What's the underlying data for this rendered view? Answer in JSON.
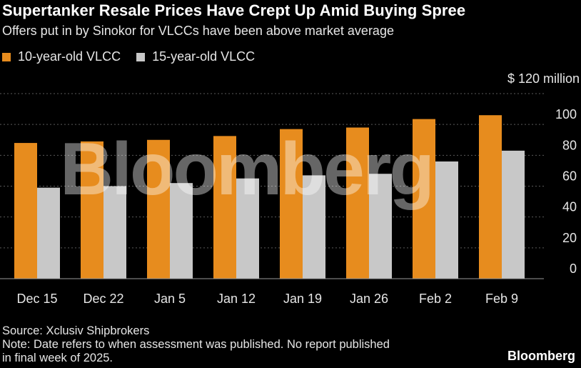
{
  "title": "Supertanker Resale Prices Have Crept Up Amid Buying Spree",
  "subtitle": "Offers put in by Sinokor for VLCCs have been above market average",
  "legend": [
    {
      "label": "10-year-old VLCC",
      "color": "#e78c1e"
    },
    {
      "label": "15-year-old VLCC",
      "color": "#c8c8c8"
    }
  ],
  "unit_label": "$ 120 million",
  "watermark": "Bloomberg",
  "footer": {
    "source": "Source: Xclusiv Shipbrokers",
    "note_line1": "Note: Date refers to when assessment was published. No report published",
    "note_line2": "in final week of 2025."
  },
  "brand": "Bloomberg",
  "chart_data": {
    "type": "bar",
    "categories": [
      "Dec 15",
      "Dec 22",
      "Jan 5",
      "Jan 12",
      "Jan 19",
      "Jan 26",
      "Feb 2",
      "Feb 9"
    ],
    "series": [
      {
        "name": "10-year-old VLCC",
        "values": [
          88,
          89,
          90,
          92.5,
          97,
          98,
          103.5,
          106
        ],
        "color": "#e78c1e"
      },
      {
        "name": "15-year-old VLCC",
        "values": [
          59,
          60,
          62,
          65,
          67,
          68,
          76,
          83
        ],
        "color": "#c8c8c8"
      }
    ],
    "yticks": [
      0,
      20,
      40,
      60,
      80,
      100
    ],
    "ylim": [
      0,
      120
    ],
    "grid": true,
    "axis_position": "right"
  }
}
